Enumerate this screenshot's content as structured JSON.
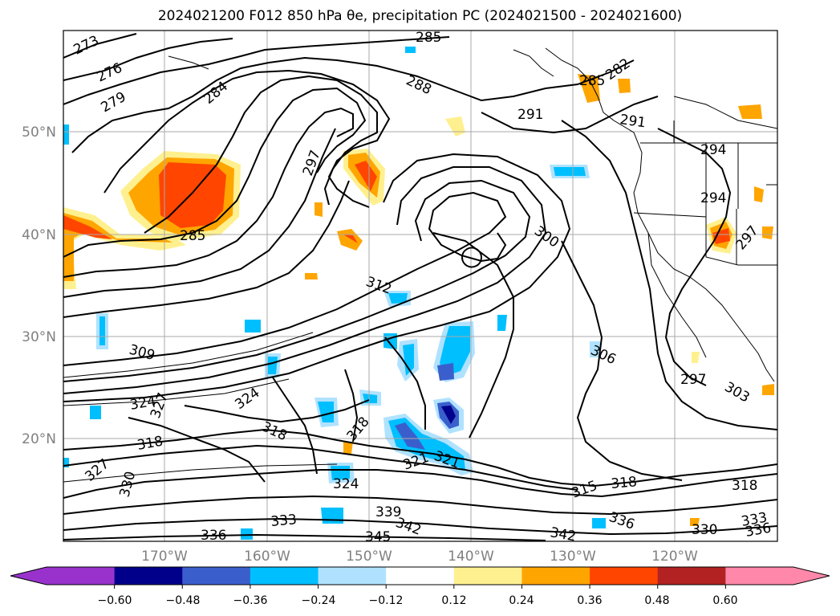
{
  "title": "2024021200 F012 850 hPa θe, precipitation PC (2024021500 - 2024021600)",
  "map": {
    "lat_labels": [
      "50°N",
      "40°N",
      "30°N",
      "20°N"
    ],
    "lon_labels": [
      "170°W",
      "160°W",
      "150°W",
      "140°W",
      "130°W",
      "120°W"
    ],
    "contour_labels": [
      "273",
      "276",
      "279",
      "284",
      "285",
      "288",
      "282",
      "285",
      "291",
      "291",
      "294",
      "294",
      "297",
      "297",
      "285",
      "300",
      "312",
      "309",
      "324",
      "327",
      "324",
      "318",
      "318",
      "318",
      "321",
      "321",
      "324",
      "327",
      "330",
      "333",
      "336",
      "339",
      "342",
      "345",
      "342",
      "336",
      "315",
      "318",
      "318",
      "330",
      "333",
      "336",
      "306",
      "297",
      "303"
    ]
  },
  "colorbar": {
    "ticks": [
      "−0.60",
      "−0.48",
      "−0.36",
      "−0.24",
      "−0.12",
      "0.12",
      "0.24",
      "0.36",
      "0.48",
      "0.60"
    ],
    "colors": [
      "#9932cc",
      "#00008b",
      "#3a5fcd",
      "#00bfff",
      "#b0e2ff",
      "#ffffff",
      "#fff08f",
      "#ffa500",
      "#ff4500",
      "#b22222",
      "#ff88aa"
    ]
  },
  "palette": {
    "blue_light": "#b0e2ff",
    "blue": "#00bfff",
    "blue_mid": "#3a5fcd",
    "navy": "#00008b",
    "yellow": "#fff08f",
    "orange": "#ffa500",
    "red_orange": "#ff4500"
  }
}
